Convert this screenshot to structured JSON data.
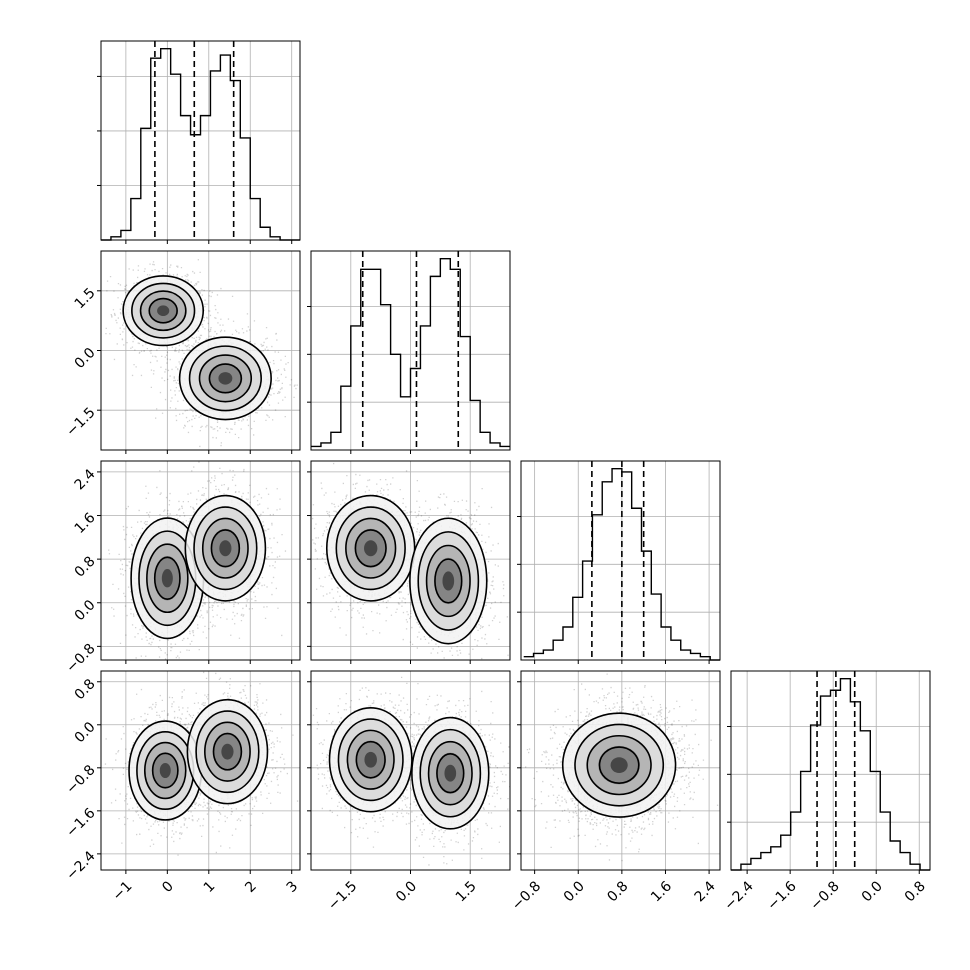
{
  "chart_data": {
    "type": "corner",
    "grid": true,
    "parameters": [
      {
        "ticks": [
          "−1",
          "0",
          "1",
          "2",
          "3"
        ],
        "tick_values": [
          -1,
          0,
          1,
          2,
          3
        ],
        "range": [
          -1.6,
          3.2
        ]
      },
      {
        "ticks": [
          "−1.5",
          "0.0",
          "1.5"
        ],
        "tick_values": [
          -1.5,
          0.0,
          1.5
        ],
        "range": [
          -2.5,
          2.5
        ]
      },
      {
        "ticks": [
          "−0.8",
          "0.0",
          "0.8",
          "1.6",
          "2.4"
        ],
        "tick_values": [
          -0.8,
          0.0,
          0.8,
          1.6,
          2.4
        ],
        "range": [
          -1.05,
          2.6
        ]
      },
      {
        "ticks": [
          "−2.4",
          "−1.6",
          "−0.8",
          "0.0",
          "0.8"
        ],
        "tick_values": [
          -2.4,
          -1.6,
          -0.8,
          0.0,
          0.8
        ],
        "range": [
          -2.7,
          1.0
        ]
      }
    ],
    "quantiles": [
      [
        -0.3,
        0.65,
        1.6
      ],
      [
        -1.2,
        0.15,
        1.2
      ],
      [
        0.25,
        0.8,
        1.2
      ],
      [
        -1.1,
        -0.75,
        -0.4
      ]
    ],
    "histograms": [
      {
        "bin_edges": [
          -1.6,
          -1.36,
          -1.12,
          -0.88,
          -0.64,
          -0.4,
          -0.16,
          0.08,
          0.32,
          0.56,
          0.8,
          1.04,
          1.28,
          1.52,
          1.76,
          2.0,
          2.24,
          2.48,
          2.72,
          2.96,
          3.2
        ],
        "counts": [
          0,
          1,
          3,
          13,
          35,
          57,
          60,
          52,
          39,
          33,
          39,
          53,
          58,
          50,
          32,
          13,
          4,
          1,
          0,
          0
        ]
      },
      {
        "bin_edges": [
          -2.5,
          -2.25,
          -2.0,
          -1.75,
          -1.5,
          -1.25,
          -1.0,
          -0.75,
          -0.5,
          -0.25,
          0.0,
          0.25,
          0.5,
          0.75,
          1.0,
          1.25,
          1.5,
          1.75,
          2.0,
          2.25,
          2.5
        ],
        "counts": [
          1,
          2,
          5,
          18,
          35,
          51,
          51,
          41,
          27,
          15,
          23,
          35,
          49,
          54,
          51,
          32,
          14,
          5,
          2,
          1
        ]
      },
      {
        "bin_edges": [
          -1.0,
          -0.82,
          -0.64,
          -0.46,
          -0.28,
          -0.1,
          0.08,
          0.26,
          0.44,
          0.62,
          0.8,
          0.98,
          1.16,
          1.34,
          1.52,
          1.7,
          1.88,
          2.06,
          2.24,
          2.42,
          2.6
        ],
        "counts": [
          1,
          2,
          3,
          6,
          10,
          19,
          30,
          44,
          54,
          58,
          57,
          46,
          33,
          20,
          10,
          6,
          3,
          2,
          1,
          0
        ]
      },
      {
        "bin_edges": [
          -2.7,
          -2.515,
          -2.33,
          -2.145,
          -1.96,
          -1.775,
          -1.59,
          -1.405,
          -1.22,
          -1.035,
          -0.85,
          -0.665,
          -0.48,
          -0.295,
          -0.11,
          0.075,
          0.26,
          0.445,
          0.63,
          0.815,
          1.0
        ],
        "counts": [
          0,
          1,
          2,
          3,
          4,
          6,
          10,
          17,
          25,
          30,
          31,
          33,
          29,
          24,
          17,
          10,
          5,
          3,
          1,
          0
        ]
      }
    ],
    "pairs": [
      {
        "row": 1,
        "col": 0,
        "clusters": [
          {
            "cx": -0.1,
            "cy": 1.0,
            "sx": 0.42,
            "sy": 0.38,
            "rho": 0.0
          },
          {
            "cx": 1.4,
            "cy": -0.7,
            "sx": 0.48,
            "sy": 0.45,
            "rho": 0.0
          }
        ]
      },
      {
        "row": 2,
        "col": 0,
        "clusters": [
          {
            "cx": 0.0,
            "cy": 0.45,
            "sx": 0.38,
            "sy": 0.48,
            "rho": 0.0
          },
          {
            "cx": 1.4,
            "cy": 1.0,
            "sx": 0.42,
            "sy": 0.42,
            "rho": 0.0
          }
        ]
      },
      {
        "row": 2,
        "col": 1,
        "clusters": [
          {
            "cx": -1.0,
            "cy": 1.0,
            "sx": 0.48,
            "sy": 0.42,
            "rho": 0.0
          },
          {
            "cx": 0.95,
            "cy": 0.4,
            "sx": 0.42,
            "sy": 0.5,
            "rho": 0.0
          }
        ]
      },
      {
        "row": 3,
        "col": 0,
        "clusters": [
          {
            "cx": -0.05,
            "cy": -0.85,
            "sx": 0.38,
            "sy": 0.4,
            "rho": 0.0
          },
          {
            "cx": 1.45,
            "cy": -0.5,
            "sx": 0.42,
            "sy": 0.42,
            "rho": 0.0
          }
        ]
      },
      {
        "row": 3,
        "col": 1,
        "clusters": [
          {
            "cx": -1.0,
            "cy": -0.65,
            "sx": 0.45,
            "sy": 0.42,
            "rho": 0.0
          },
          {
            "cx": 1.0,
            "cy": -0.9,
            "sx": 0.42,
            "sy": 0.45,
            "rho": 0.0
          }
        ]
      },
      {
        "row": 3,
        "col": 2,
        "clusters": [
          {
            "cx": 0.75,
            "cy": -0.75,
            "sx": 0.45,
            "sy": 0.42,
            "rho": 0.1
          }
        ]
      }
    ]
  }
}
